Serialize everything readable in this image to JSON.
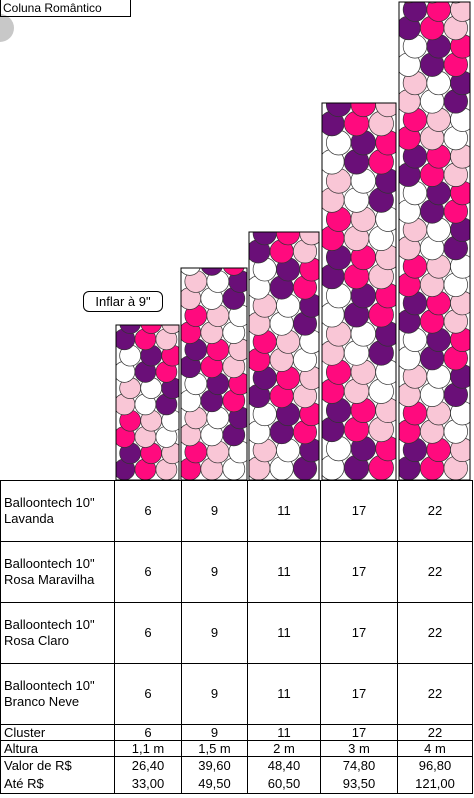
{
  "title": "Coluna Romântico",
  "badge": "Inflar à 9\"",
  "table": {
    "rows": [
      [
        "Balloontech 10\" Lavanda",
        "6",
        "9",
        "11",
        "17",
        "22"
      ],
      [
        "Balloontech 10\" Rosa Maravilha",
        "6",
        "9",
        "11",
        "17",
        "22"
      ],
      [
        "Balloontech 10\" Rosa Claro",
        "6",
        "9",
        "11",
        "17",
        "22"
      ],
      [
        "Balloontech 10\" Branco Neve",
        "6",
        "9",
        "11",
        "17",
        "22"
      ],
      [
        "Cluster",
        "6",
        "9",
        "11",
        "17",
        "22"
      ],
      [
        "Altura",
        "1,1 m",
        "1,5 m",
        "2 m",
        "3 m",
        "4 m"
      ],
      [
        "Valor de  R$",
        "26,40",
        "39,60",
        "48,40",
        "74,80",
        "96,80"
      ],
      [
        "Até R$",
        "33,00",
        "49,50",
        "60,50",
        "93,50",
        "121,00"
      ]
    ]
  }
}
